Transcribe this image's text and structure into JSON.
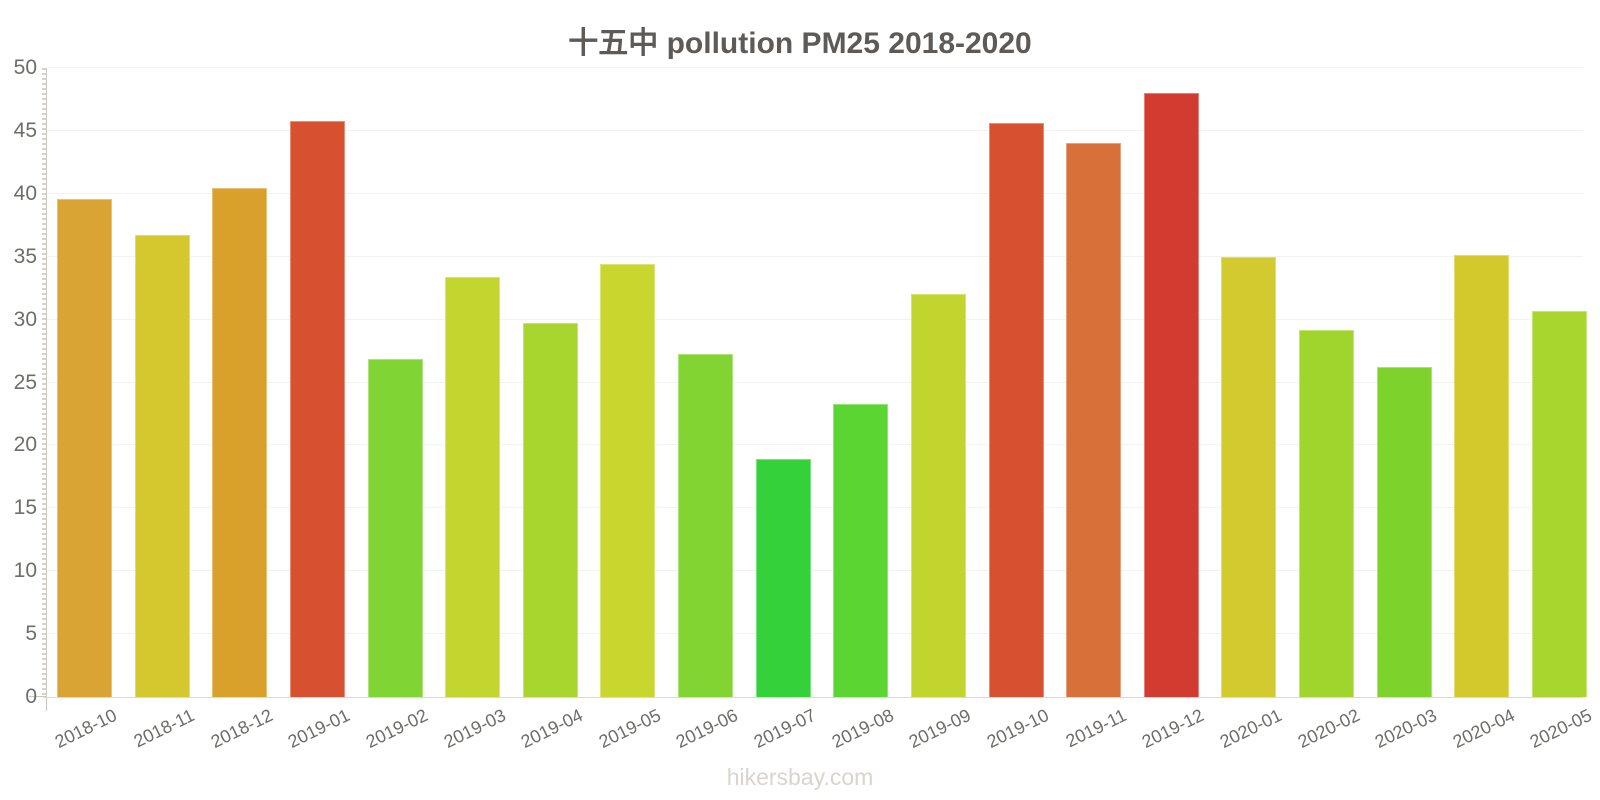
{
  "title": "十五中 pollution PM25 2018-2020",
  "footer": "hikersbay.com",
  "chart_data": {
    "type": "bar",
    "title": "十五中 pollution PM25 2018-2020",
    "categories": [
      "2018-10",
      "2018-11",
      "2018-12",
      "2019-01",
      "2019-02",
      "2019-03",
      "2019-04",
      "2019-05",
      "2019-06",
      "2019-07",
      "2019-08",
      "2019-09",
      "2019-10",
      "2019-11",
      "2019-12",
      "2020-01",
      "2020-02",
      "2020-03",
      "2020-04",
      "2020-05"
    ],
    "values": [
      39.6,
      36.7,
      40.5,
      45.8,
      26.9,
      33.4,
      29.7,
      34.4,
      27.3,
      18.9,
      23.3,
      32.0,
      45.6,
      44.0,
      48.0,
      35.0,
      29.2,
      26.2,
      35.1,
      30.7
    ],
    "bar_colors": [
      "#d9a433",
      "#d5c82f",
      "#d9a02c",
      "#d7502f",
      "#80d433",
      "#c2d62f",
      "#a8d62e",
      "#c8d62e",
      "#82d433",
      "#35d13a",
      "#5bd531",
      "#c2d52f",
      "#d7502f",
      "#d8703a",
      "#d13b30",
      "#d2ca2e",
      "#a0d52e",
      "#7dd32c",
      "#d4c92c",
      "#a8d62e"
    ],
    "ylabel": "",
    "xlabel": "",
    "ylim": [
      0,
      50
    ],
    "yticks": [
      0,
      5,
      10,
      15,
      20,
      25,
      30,
      35,
      40,
      45,
      50
    ],
    "grid": "horizontal-light",
    "legend": "none"
  },
  "colors": {
    "background": "#ffffff",
    "title_text": "#5d5a57",
    "axis_text": "#6f6d6a",
    "axis_line": "#cbc6c0",
    "gridline": "#f4f2ef",
    "watermark": "#d9d4ce"
  }
}
